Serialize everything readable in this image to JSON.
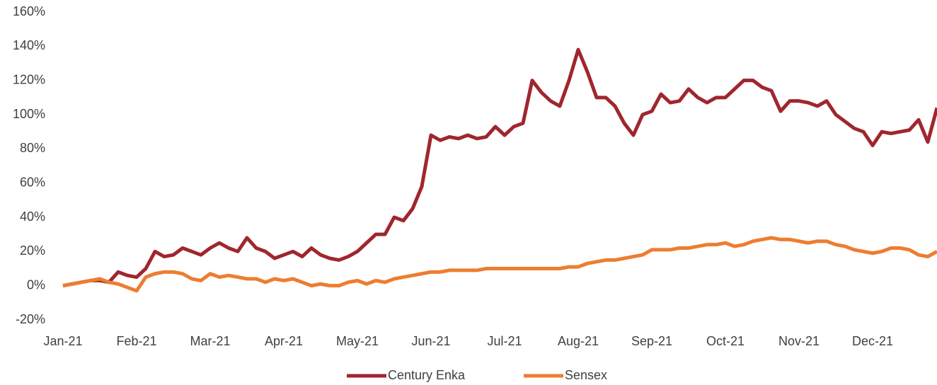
{
  "chart_data": {
    "type": "line",
    "categories": [
      "Jan-21",
      null,
      null,
      null,
      null,
      null,
      null,
      null,
      "Feb-21",
      null,
      null,
      null,
      null,
      null,
      null,
      null,
      "Mar-21",
      null,
      null,
      null,
      null,
      null,
      null,
      null,
      "Apr-21",
      null,
      null,
      null,
      null,
      null,
      null,
      null,
      "May-21",
      null,
      null,
      null,
      null,
      null,
      null,
      null,
      "Jun-21",
      null,
      null,
      null,
      null,
      null,
      null,
      null,
      "Jul-21",
      null,
      null,
      null,
      null,
      null,
      null,
      null,
      "Aug-21",
      null,
      null,
      null,
      null,
      null,
      null,
      null,
      "Sep-21",
      null,
      null,
      null,
      null,
      null,
      null,
      null,
      "Oct-21",
      null,
      null,
      null,
      null,
      null,
      null,
      null,
      "Nov-21",
      null,
      null,
      null,
      null,
      null,
      null,
      null,
      "Dec-21",
      null,
      null,
      null,
      null,
      null,
      null,
      null
    ],
    "series": [
      {
        "name": "Century Enka",
        "color": "#a0262e",
        "values": [
          0,
          1,
          2,
          3,
          3,
          2,
          8,
          6,
          5,
          10,
          20,
          17,
          18,
          22,
          20,
          18,
          22,
          25,
          22,
          20,
          28,
          22,
          20,
          16,
          18,
          20,
          17,
          22,
          18,
          16,
          15,
          17,
          20,
          25,
          30,
          30,
          40,
          38,
          45,
          58,
          88,
          85,
          87,
          86,
          88,
          86,
          87,
          93,
          88,
          93,
          95,
          120,
          113,
          108,
          105,
          120,
          138,
          125,
          110,
          110,
          105,
          95,
          88,
          100,
          102,
          112,
          107,
          108,
          115,
          110,
          107,
          110,
          110,
          115,
          120,
          120,
          116,
          114,
          102,
          108,
          108,
          107,
          105,
          108,
          100,
          96,
          92,
          90,
          82,
          90,
          89,
          90,
          91,
          97,
          84,
          104
        ]
      },
      {
        "name": "Sensex",
        "color": "#ed7d31",
        "values": [
          0,
          1,
          2,
          3,
          4,
          2,
          1,
          -1,
          -3,
          5,
          7,
          8,
          8,
          7,
          4,
          3,
          7,
          5,
          6,
          5,
          4,
          4,
          2,
          4,
          3,
          4,
          2,
          0,
          1,
          0,
          0,
          2,
          3,
          1,
          3,
          2,
          4,
          5,
          6,
          7,
          8,
          8,
          9,
          9,
          9,
          9,
          10,
          10,
          10,
          10,
          10,
          10,
          10,
          10,
          10,
          11,
          11,
          13,
          14,
          15,
          15,
          16,
          17,
          18,
          21,
          21,
          21,
          22,
          22,
          23,
          24,
          24,
          25,
          23,
          24,
          26,
          27,
          28,
          27,
          27,
          26,
          25,
          26,
          26,
          24,
          23,
          21,
          20,
          19,
          20,
          22,
          22,
          21,
          18,
          17,
          20
        ]
      }
    ],
    "ylim": [
      -20,
      160
    ],
    "yticks": [
      {
        "value": -20,
        "label": "-20%"
      },
      {
        "value": 0,
        "label": "0%"
      },
      {
        "value": 20,
        "label": "20%"
      },
      {
        "value": 40,
        "label": "40%"
      },
      {
        "value": 60,
        "label": "60%"
      },
      {
        "value": 80,
        "label": "80%"
      },
      {
        "value": 100,
        "label": "100%"
      },
      {
        "value": 120,
        "label": "120%"
      },
      {
        "value": 140,
        "label": "140%"
      },
      {
        "value": 160,
        "label": "160%"
      }
    ],
    "grid": false,
    "legend": "bottom"
  }
}
